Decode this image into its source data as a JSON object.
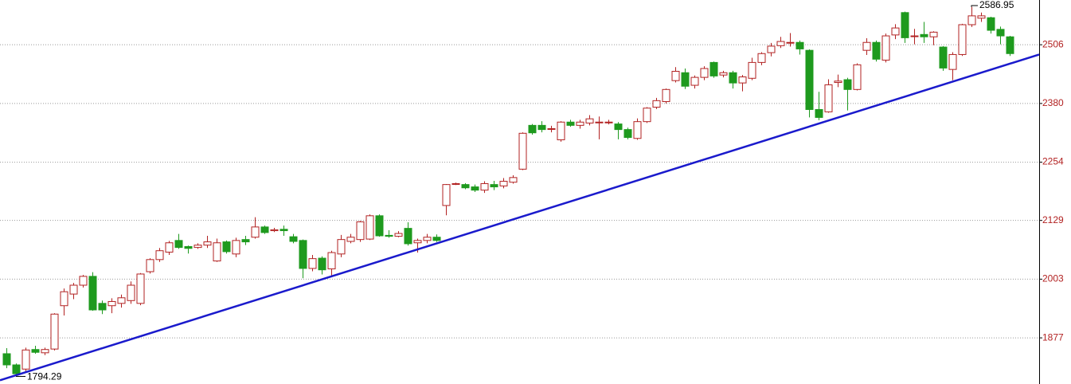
{
  "chart_data": {
    "type": "candlestick",
    "open": [
      1843,
      1819,
      1810,
      1852,
      1845,
      1853,
      1946,
      1971,
      1990,
      2009,
      1951,
      1946,
      1951,
      1957,
      1951,
      2019,
      2045,
      2061,
      2086,
      2073,
      2071,
      2076,
      2042,
      2083,
      2057,
      2088,
      2093,
      2115,
      2107,
      2110,
      2094,
      2086,
      2026,
      2048,
      2025,
      2057,
      2084,
      2088,
      2089,
      2139,
      2097,
      2095,
      2112,
      2081,
      2086,
      2093,
      2161,
      2207,
      2206,
      2201,
      2194,
      2206,
      2203,
      2211,
      2239,
      2333,
      2333,
      2326,
      2302,
      2340,
      2333,
      2338,
      2340,
      2340,
      2336,
      2324,
      2305,
      2341,
      2372,
      2384,
      2429,
      2446,
      2419,
      2436,
      2468,
      2441,
      2446,
      2424,
      2434,
      2468,
      2489,
      2504,
      2511,
      2511,
      2494,
      2367,
      2362,
      2425,
      2431,
      2410,
      2494,
      2511,
      2473,
      2527,
      2575,
      2525,
      2528,
      2523,
      2501,
      2453,
      2485,
      2549,
      2563,
      2564,
      2539,
      2523
    ],
    "high": [
      1855,
      1822,
      1856,
      1860,
      1856,
      1930,
      1983,
      1995,
      2012,
      2018,
      1957,
      1962,
      1970,
      1998,
      2016,
      2048,
      2070,
      2085,
      2100,
      2075,
      2080,
      2096,
      2090,
      2086,
      2092,
      2096,
      2136,
      2118,
      2113,
      2118,
      2100,
      2088,
      2055,
      2052,
      2064,
      2098,
      2100,
      2128,
      2142,
      2142,
      2108,
      2106,
      2125,
      2090,
      2100,
      2099,
      2207,
      2210,
      2209,
      2206,
      2213,
      2214,
      2220,
      2226,
      2318,
      2336,
      2342,
      2332,
      2342,
      2345,
      2345,
      2355,
      2352,
      2345,
      2340,
      2328,
      2348,
      2372,
      2392,
      2412,
      2458,
      2455,
      2440,
      2460,
      2470,
      2450,
      2450,
      2441,
      2478,
      2490,
      2510,
      2523,
      2531,
      2515,
      2496,
      2405,
      2432,
      2442,
      2435,
      2466,
      2520,
      2515,
      2530,
      2550,
      2577,
      2540,
      2555,
      2535,
      2503,
      2490,
      2551,
      2586.95,
      2575,
      2566,
      2545,
      2525
    ],
    "low": [
      1812,
      1794.29,
      1803,
      1843,
      1840,
      1850,
      1925,
      1960,
      1985,
      1935,
      1928,
      1930,
      1942,
      1950,
      1947,
      2015,
      2040,
      2055,
      2068,
      2058,
      2068,
      2070,
      2040,
      2058,
      2050,
      2076,
      2090,
      2100,
      2104,
      2096,
      2080,
      2005,
      2020,
      2013,
      2010,
      2050,
      2080,
      2083,
      2087,
      2094,
      2092,
      2093,
      2075,
      2060,
      2080,
      2083,
      2140,
      2205,
      2196,
      2190,
      2188,
      2194,
      2198,
      2208,
      2237,
      2313,
      2318,
      2318,
      2298,
      2330,
      2326,
      2333,
      2303,
      2335,
      2303,
      2303,
      2302,
      2338,
      2368,
      2380,
      2425,
      2411,
      2412,
      2430,
      2435,
      2436,
      2412,
      2406,
      2430,
      2462,
      2481,
      2499,
      2502,
      2485,
      2350,
      2344,
      2360,
      2415,
      2365,
      2408,
      2484,
      2470,
      2468,
      2518,
      2510,
      2507,
      2510,
      2505,
      2450,
      2430,
      2482,
      2544,
      2555,
      2530,
      2507,
      2482
    ],
    "close": [
      1819,
      1800,
      1851,
      1846,
      1852,
      1928,
      1976,
      1990,
      2009,
      1937,
      1937,
      1955,
      1963,
      1990,
      2014,
      2045,
      2064,
      2081,
      2071,
      2069,
      2076,
      2083,
      2081,
      2062,
      2086,
      2083,
      2115,
      2103,
      2109,
      2107,
      2084,
      2026,
      2047,
      2023,
      2060,
      2088,
      2093,
      2126,
      2139,
      2096,
      2095,
      2101,
      2079,
      2086,
      2093,
      2086,
      2206,
      2208,
      2199,
      2194,
      2208,
      2201,
      2213,
      2221,
      2316,
      2317,
      2324,
      2326,
      2340,
      2333,
      2340,
      2347,
      2340,
      2340,
      2324,
      2307,
      2341,
      2370,
      2386,
      2410,
      2449,
      2417,
      2436,
      2455,
      2439,
      2446,
      2424,
      2437,
      2468,
      2487,
      2503,
      2513,
      2511,
      2497,
      2367,
      2350,
      2420,
      2428,
      2410,
      2463,
      2511,
      2475,
      2525,
      2542,
      2521,
      2525,
      2523,
      2533,
      2456,
      2485,
      2549,
      2568,
      2568,
      2537,
      2525,
      2487
    ],
    "up_color": "#b22222",
    "down_color": "#1e9a1e",
    "ylim": [
      1778,
      2602
    ],
    "yticks": [
      1877,
      2003,
      2129,
      2254,
      2380,
      2506
    ],
    "grid": true,
    "annotate_extremes": true,
    "trend_line": {
      "values": [
        1786,
        2485
      ],
      "color": "#1a1acc"
    }
  }
}
